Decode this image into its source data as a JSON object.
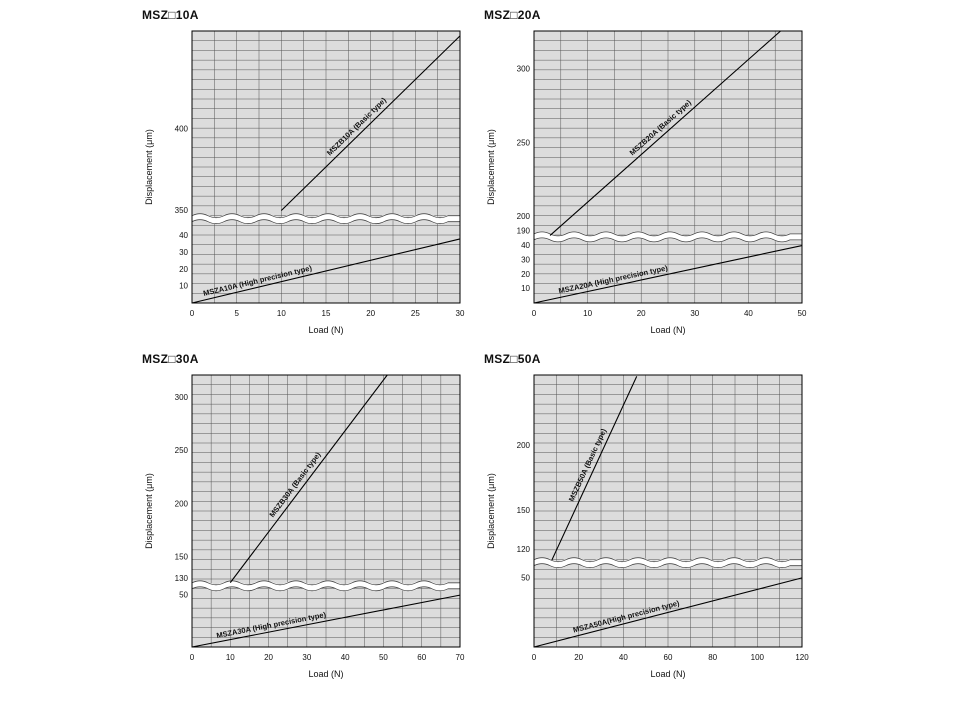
{
  "page": {
    "background": "#ffffff"
  },
  "chart_data": [
    {
      "type": "line",
      "title": "MSZ□10A",
      "xlabel": "Load (N)",
      "ylabel": "Displacement (μm)",
      "plot_bg": "#dcdcdc",
      "grid": true,
      "x_axis": {
        "min": 0,
        "max": 30,
        "ticks": [
          0,
          5,
          10,
          15,
          20,
          25,
          30
        ],
        "minor_step": 2.5
      },
      "y_axis_broken": true,
      "break_frac": 0.69,
      "h_grid_rows": 28,
      "y_upper": {
        "min": 345,
        "max": 460,
        "ticks": [
          350,
          400
        ]
      },
      "y_lower": {
        "min": 0,
        "max": 50,
        "ticks": [
          10,
          20,
          30,
          40
        ]
      },
      "series": [
        {
          "name": "MSZB10A (Basic type)",
          "scale": "upper",
          "points": [
            [
              10,
              350
            ],
            [
              30,
              457
            ]
          ],
          "label_t": 0.45,
          "label_dy": -5
        },
        {
          "name": "MSZA10A (High precision type)",
          "scale": "lower",
          "points": [
            [
              0,
              0
            ],
            [
              30,
              38
            ]
          ],
          "label_t": 0.25,
          "label_dy": -4
        }
      ]
    },
    {
      "type": "line",
      "title": "MSZ□20A",
      "xlabel": "Load (N)",
      "ylabel": "Displacement (μm)",
      "plot_bg": "#dcdcdc",
      "grid": true,
      "x_axis": {
        "min": 0,
        "max": 50,
        "ticks": [
          0,
          10,
          20,
          30,
          40,
          50
        ],
        "minor_step": 5
      },
      "y_axis_broken": true,
      "break_frac": 0.757,
      "h_grid_rows": 28,
      "y_upper": {
        "min": 186,
        "max": 326,
        "ticks": [
          190,
          200,
          250,
          300
        ]
      },
      "y_lower": {
        "min": 0,
        "max": 46,
        "ticks": [
          10,
          20,
          30,
          40
        ]
      },
      "series": [
        {
          "name": "MSZB20A (Basic type)",
          "scale": "upper",
          "points": [
            [
              3,
              187
            ],
            [
              46,
              326
            ]
          ],
          "label_t": 0.5,
          "label_dy": -5
        },
        {
          "name": "MSZA20A (High precision type)",
          "scale": "lower",
          "points": [
            [
              0,
              0
            ],
            [
              50,
              40
            ]
          ],
          "label_t": 0.3,
          "label_dy": -4
        }
      ]
    },
    {
      "type": "line",
      "title": "MSZ□30A",
      "xlabel": "Load (N)",
      "ylabel": "Displacement (μm)",
      "plot_bg": "#dcdcdc",
      "grid": true,
      "x_axis": {
        "min": 0,
        "max": 70,
        "ticks": [
          0,
          10,
          20,
          30,
          40,
          50,
          60,
          70
        ],
        "minor_step": 5
      },
      "y_axis_broken": true,
      "break_frac": 0.775,
      "h_grid_rows": 28,
      "y_upper": {
        "min": 123,
        "max": 321,
        "ticks": [
          130,
          150,
          200,
          250,
          300
        ]
      },
      "y_lower": {
        "min": 0,
        "max": 59,
        "ticks": [
          50
        ]
      },
      "series": [
        {
          "name": "MSZB30A (Basic type)",
          "scale": "upper",
          "points": [
            [
              10,
              126
            ],
            [
              51,
              321
            ]
          ],
          "label_t": 0.45,
          "label_dy": -5
        },
        {
          "name": "MSZA30A (High precision type)",
          "scale": "lower",
          "points": [
            [
              0,
              0
            ],
            [
              70,
              50
            ]
          ],
          "label_t": 0.3,
          "label_dy": -4
        }
      ]
    },
    {
      "type": "line",
      "title": "MSZ□50A",
      "xlabel": "Load (N)",
      "ylabel": "Displacement (μm)",
      "plot_bg": "#dcdcdc",
      "grid": true,
      "x_axis": {
        "min": 0,
        "max": 120,
        "ticks": [
          0,
          20,
          40,
          60,
          80,
          100,
          120
        ],
        "minor_step": 10
      },
      "y_axis_broken": true,
      "break_frac": 0.69,
      "h_grid_rows": 28,
      "y_upper": {
        "min": 110,
        "max": 254,
        "ticks": [
          120,
          150,
          200
        ]
      },
      "y_lower": {
        "min": 0,
        "max": 61,
        "ticks": [
          50
        ]
      },
      "series": [
        {
          "name": "MSZB50A (Basic type)",
          "scale": "upper",
          "points": [
            [
              8,
              112
            ],
            [
              46,
              253
            ]
          ],
          "label_t": 0.5,
          "label_dy": -5
        },
        {
          "name": "MSZA50A(High precision type)",
          "scale": "lower",
          "points": [
            [
              0,
              0
            ],
            [
              120,
              50
            ]
          ],
          "label_t": 0.35,
          "label_dy": -4
        }
      ]
    }
  ]
}
